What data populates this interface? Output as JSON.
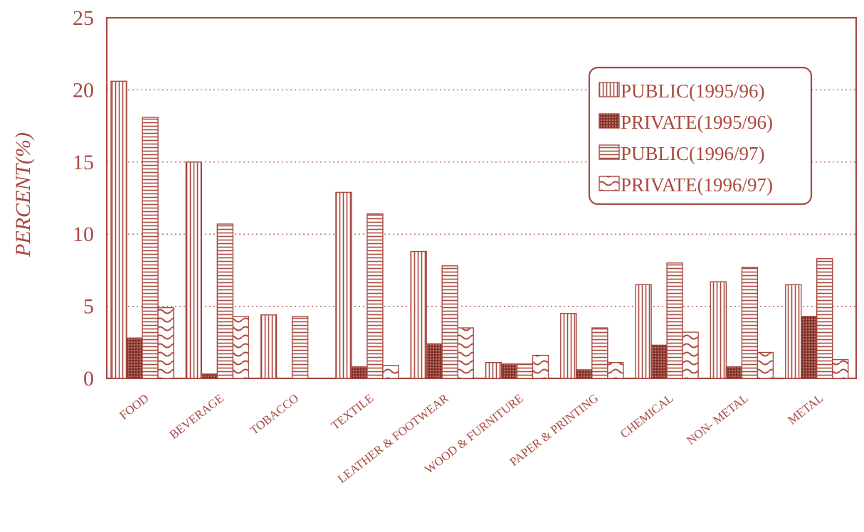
{
  "chart_data": {
    "type": "bar",
    "ylabel": "PERCENT(%)",
    "xlabel": "",
    "ylim": [
      0,
      25
    ],
    "yticks": [
      "0",
      "5",
      "10",
      "15",
      "20",
      "25"
    ],
    "grid": "horizontal dotted",
    "legend_position": "top-right",
    "categories": [
      "FOOD",
      "BEVERAGE",
      "TOBACCO",
      "TEXTILE",
      "LEATHER & FOOTWEAR",
      "WOOD & FURNITURE",
      "PAPER & PRINTING",
      "CHEMICAL",
      "NON- METAL",
      "METAL"
    ],
    "series": [
      {
        "name": "PUBLIC(1995/96)",
        "values": [
          20.6,
          15.0,
          4.4,
          12.9,
          8.8,
          1.1,
          4.5,
          6.5,
          6.7,
          6.5
        ],
        "color": "#a84a40",
        "pattern": "vertical-lines"
      },
      {
        "name": "PRIVATE(1995/96)",
        "values": [
          2.8,
          0.3,
          0.0,
          0.8,
          2.4,
          1.0,
          0.6,
          2.3,
          0.8,
          4.3
        ],
        "color": "#a84a40",
        "pattern": "dots"
      },
      {
        "name": "PUBLIC(1996/97)",
        "values": [
          18.1,
          10.7,
          4.3,
          11.4,
          7.8,
          1.0,
          3.5,
          8.0,
          7.7,
          8.3
        ],
        "color": "#a84a40",
        "pattern": "horizontal-lines"
      },
      {
        "name": "PRIVATE(1996/97)",
        "values": [
          4.9,
          4.3,
          0.0,
          0.9,
          3.5,
          1.6,
          1.1,
          3.2,
          1.8,
          1.3
        ],
        "color": "#a84a40",
        "pattern": "waves"
      }
    ]
  }
}
